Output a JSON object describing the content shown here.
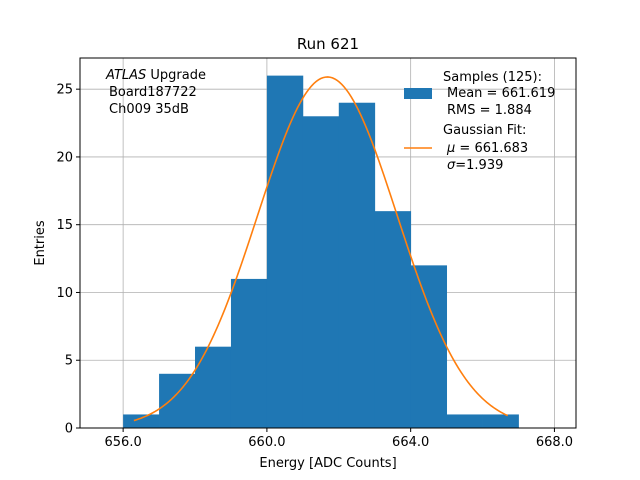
{
  "chart_data": {
    "type": "bar",
    "title": "Run 621",
    "xlabel": "Energy [ADC Counts]",
    "ylabel": "Entries",
    "xlim": [
      654.8,
      668.6
    ],
    "ylim": [
      0,
      27.3
    ],
    "xticks": [
      656.0,
      660.0,
      664.0,
      668.0
    ],
    "xtick_labels": [
      "656.0",
      "660.0",
      "664.0",
      "668.0"
    ],
    "yticks": [
      0,
      5,
      10,
      15,
      20,
      25
    ],
    "ytick_labels": [
      "0",
      "5",
      "10",
      "15",
      "20",
      "25"
    ],
    "grid": true,
    "bar_color": "#1f77b4",
    "fit_color": "#ff7f0e",
    "histogram": {
      "bin_edges": [
        656.0,
        657.0,
        658.0,
        659.0,
        660.0,
        661.0,
        662.0,
        663.0,
        664.0,
        665.0,
        666.0,
        667.0
      ],
      "counts": [
        1,
        4,
        6,
        11,
        26,
        23,
        24,
        16,
        12,
        1,
        1
      ]
    },
    "fit": {
      "name": "Gaussian Fit",
      "mu": 661.683,
      "sigma": 1.939,
      "amplitude": 25.9,
      "x_range": [
        656.3,
        666.7
      ]
    },
    "annotation": {
      "atlas": "ATLAS",
      "upgrade": " Upgrade",
      "line2": "Board187722",
      "line3": "Ch009 35dB"
    },
    "legend": {
      "position": "top-right",
      "samples_title": "Samples (125):",
      "samples_mean": "Mean = 661.619",
      "samples_rms": "RMS = 1.884",
      "fit_title": "Gaussian Fit:",
      "fit_mu_symbol": "μ",
      "fit_mu_value": " = 661.683",
      "fit_sigma_symbol": "σ",
      "fit_sigma_value": "=1.939"
    }
  }
}
